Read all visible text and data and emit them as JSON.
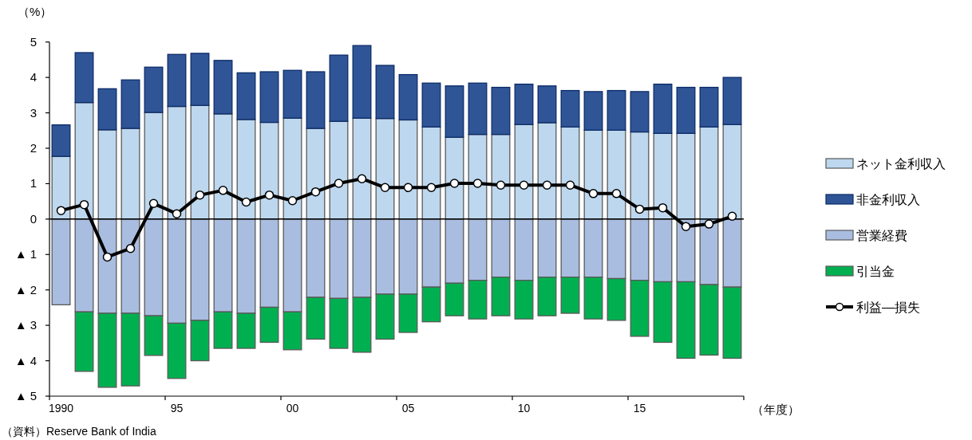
{
  "chart_data": {
    "type": "bar",
    "stacked": true,
    "ylabel": "（%）",
    "xlabel": "（年度）",
    "annotations": [
      "（資料）Reserve Bank of India"
    ],
    "categories": [
      "1990",
      null,
      null,
      null,
      null,
      "95",
      null,
      null,
      null,
      null,
      "00",
      null,
      null,
      null,
      null,
      "05",
      null,
      null,
      null,
      null,
      "10",
      null,
      null,
      null,
      null,
      "15",
      null,
      null,
      null,
      null
    ],
    "ylim": [
      -5,
      5
    ],
    "yticks": [
      {
        "value": -5,
        "label": "▲ 5"
      },
      {
        "value": -4,
        "label": "▲ 4"
      },
      {
        "value": -3,
        "label": "▲ 3"
      },
      {
        "value": -2,
        "label": "▲ 2"
      },
      {
        "value": -1,
        "label": "▲ 1"
      },
      0,
      1,
      2,
      3,
      4,
      5
    ],
    "ref_lines": [
      {
        "axis": "y",
        "value": 0,
        "color": "#000000"
      }
    ],
    "grid": false,
    "legend": "right",
    "series": [
      {
        "name": "ネット金利収入",
        "color": "#bdd7ee",
        "values": [
          1.77,
          3.29,
          2.52,
          2.56,
          3.01,
          3.18,
          3.21,
          2.97,
          2.81,
          2.73,
          2.85,
          2.56,
          2.76,
          2.85,
          2.84,
          2.8,
          2.6,
          2.31,
          2.39,
          2.39,
          2.67,
          2.72,
          2.6,
          2.51,
          2.51,
          2.46,
          2.42,
          2.42,
          2.6,
          2.67
        ]
      },
      {
        "name": "非金利収入",
        "color": "#2f5597",
        "values": [
          0.89,
          1.41,
          1.16,
          1.37,
          1.28,
          1.47,
          1.47,
          1.51,
          1.32,
          1.43,
          1.35,
          1.6,
          1.87,
          2.05,
          1.5,
          1.28,
          1.24,
          1.45,
          1.45,
          1.33,
          1.14,
          1.04,
          1.03,
          1.09,
          1.12,
          1.14,
          1.39,
          1.3,
          1.12,
          1.33
        ]
      },
      {
        "name": "営業経費",
        "color": "#a9bde0",
        "values": [
          -2.42,
          -2.62,
          -2.66,
          -2.66,
          -2.73,
          -2.94,
          -2.86,
          -2.62,
          -2.66,
          -2.49,
          -2.62,
          -2.21,
          -2.24,
          -2.21,
          -2.12,
          -2.12,
          -1.92,
          -1.81,
          -1.73,
          -1.64,
          -1.73,
          -1.64,
          -1.64,
          -1.64,
          -1.68,
          -1.73,
          -1.77,
          -1.77,
          -1.85,
          -1.92
        ]
      },
      {
        "name": "引当金",
        "color": "#00b050",
        "values": [
          null,
          -1.68,
          -2.09,
          -2.05,
          -1.12,
          -1.56,
          -1.14,
          -1.03,
          -0.99,
          -0.99,
          -1.07,
          -1.18,
          -1.41,
          -1.55,
          -1.27,
          -1.08,
          -0.98,
          -0.92,
          -1.09,
          -1.09,
          -1.09,
          -1.09,
          -1.02,
          -1.18,
          -1.18,
          -1.58,
          -1.71,
          -2.16,
          -1.99,
          -2.01
        ]
      },
      {
        "name": "利益―損失",
        "type": "line",
        "color": "#000000",
        "marker": "circle",
        "line_style": "solid",
        "values": [
          0.24,
          0.41,
          -1.07,
          -0.83,
          0.44,
          0.15,
          0.68,
          0.81,
          0.48,
          0.68,
          0.52,
          0.77,
          1.01,
          1.14,
          0.89,
          0.89,
          0.89,
          1.01,
          1.01,
          0.96,
          0.96,
          0.96,
          0.96,
          0.72,
          0.72,
          0.28,
          0.32,
          -0.21,
          -0.14,
          0.08
        ]
      }
    ]
  }
}
